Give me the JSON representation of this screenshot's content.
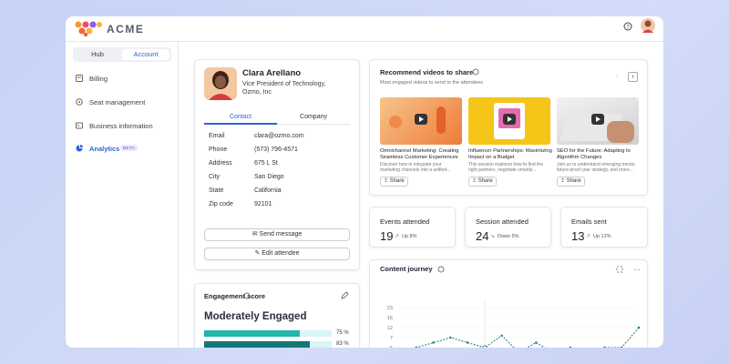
{
  "header": {
    "brand": "ACME"
  },
  "sidebar": {
    "tabs": [
      "Hub",
      "Account"
    ],
    "items": [
      {
        "label": "Billing"
      },
      {
        "label": "Seat management"
      },
      {
        "label": "Business information"
      },
      {
        "label": "Analytics",
        "badge": "BETA"
      }
    ]
  },
  "profile": {
    "name": "Clara Arellano",
    "title": "Vice President of Technology, Ozmo, Inc",
    "tabs": [
      "Contact",
      "Company"
    ],
    "fields": [
      [
        "Email",
        "clara@ozmo.com"
      ],
      [
        "Phone",
        "(573) 796-4571"
      ],
      [
        "Address",
        "675 L St"
      ],
      [
        "City",
        "San Diego"
      ],
      [
        "State",
        "California"
      ],
      [
        "Zip code",
        "92101"
      ]
    ],
    "buttons": [
      "Send message",
      "Edit attendee"
    ]
  },
  "engagement": {
    "title": "Engagement score",
    "level": "Moderately Engaged",
    "values": [
      75,
      83
    ],
    "value_labels": [
      "75 %",
      "83 %"
    ]
  },
  "videos": {
    "title": "Recommend videos to share",
    "subtitle": "Most engaged videos to send to the attendees",
    "items": [
      {
        "title": "Omnichannel Marketing: Creating Seamless Customer Experiences",
        "description": "Discover how to integrate your marketing channels into a unified...",
        "action": "Share"
      },
      {
        "title": "Influencer Partnerships: Maximizing Impact on a Budget",
        "description": "This session explores how to find the right partners, negotiate smartly...",
        "action": "Share"
      },
      {
        "title": "SEO for the Future: Adapting to Algorithm Changes",
        "description": "Join us to understand emerging trends, future-proof your strategy, and more...",
        "action": "Share"
      }
    ]
  },
  "stats": [
    {
      "label": "Events attended",
      "value": 19,
      "trend": "Up 8%"
    },
    {
      "label": "Session attended",
      "value": 24,
      "trend": "Down 5%"
    },
    {
      "label": "Emails sent",
      "value": 13,
      "trend": "Up 12%"
    }
  ],
  "chart_data": {
    "type": "line",
    "title": "Content journey",
    "values": [
      3,
      5,
      6,
      7,
      6,
      5,
      8,
      4,
      6,
      4,
      5,
      4,
      5,
      5,
      12
    ],
    "color": "#177a7a",
    "ylim": [
      3,
      23
    ],
    "yticks": [
      3,
      5,
      7,
      12,
      16,
      23
    ],
    "grid": true
  }
}
